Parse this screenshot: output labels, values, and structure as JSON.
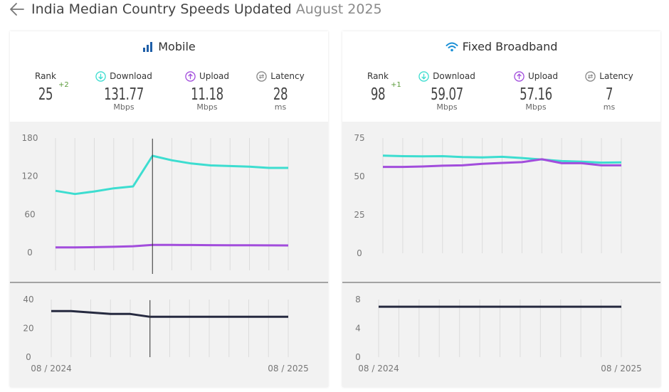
{
  "page": {
    "title_main": "India Median Country Speeds Updated",
    "title_date": "August 2025"
  },
  "colors": {
    "download": "#3dddd0",
    "upload": "#a24ddc",
    "latency": "#262a40",
    "mobile_icon": "#1f5fa8",
    "wifi_icon": "#1a8fd6",
    "rank_change": "#5a9b3a"
  },
  "mobile": {
    "title": "Mobile",
    "rank_label": "Rank",
    "rank_value": "25",
    "rank_change": "+2",
    "download_label": "Download",
    "download_value": "131.77",
    "download_unit": "Mbps",
    "upload_label": "Upload",
    "upload_value": "11.18",
    "upload_unit": "Mbps",
    "latency_label": "Latency",
    "latency_value": "28",
    "latency_unit": "ms"
  },
  "fixed": {
    "title": "Fixed Broadband",
    "rank_label": "Rank",
    "rank_value": "98",
    "rank_change": "+1",
    "download_label": "Download",
    "download_value": "59.07",
    "download_unit": "Mbps",
    "upload_label": "Upload",
    "upload_value": "57.16",
    "upload_unit": "Mbps",
    "latency_label": "Latency",
    "latency_value": "7",
    "latency_unit": "ms"
  },
  "chart_data": [
    {
      "id": "mobile-speed",
      "type": "line",
      "x_start": "08 / 2024",
      "x_end": "08 / 2025",
      "ylim": [
        0,
        180
      ],
      "yticks": [
        "180",
        "120",
        "60",
        "0"
      ],
      "series": [
        {
          "name": "Download",
          "values": [
            97,
            92,
            96,
            101,
            104,
            152,
            145,
            140,
            137,
            136,
            135,
            133,
            133
          ]
        },
        {
          "name": "Upload",
          "values": [
            8,
            8,
            8.5,
            9,
            10,
            12,
            12,
            11.8,
            11.6,
            11.5,
            11.4,
            11.3,
            11.2
          ]
        }
      ]
    },
    {
      "id": "mobile-latency",
      "type": "line",
      "x_start": "08 / 2024",
      "x_end": "08 / 2025",
      "ylim": [
        0,
        40
      ],
      "yticks": [
        "40",
        "20",
        "0"
      ],
      "series": [
        {
          "name": "Latency",
          "values": [
            32,
            32,
            31,
            30,
            30,
            28,
            28,
            28,
            28,
            28,
            28,
            28,
            28
          ]
        }
      ]
    },
    {
      "id": "fixed-speed",
      "type": "line",
      "x_start": "08 / 2024",
      "x_end": "08 / 2025",
      "ylim": [
        0,
        75
      ],
      "yticks": [
        "75",
        "50",
        "25",
        "0"
      ],
      "series": [
        {
          "name": "Download",
          "values": [
            63.5,
            63.2,
            63.1,
            63.2,
            62.6,
            62.4,
            62.8,
            62,
            61,
            60,
            59.6,
            59,
            59.1
          ]
        },
        {
          "name": "Upload",
          "values": [
            56.2,
            56.2,
            56.5,
            57,
            57.2,
            58.2,
            58.8,
            59.3,
            61.2,
            58.6,
            58.6,
            57.2,
            57.2
          ]
        }
      ]
    },
    {
      "id": "fixed-latency",
      "type": "line",
      "x_start": "08 / 2024",
      "x_end": "08 / 2025",
      "ylim": [
        0,
        8
      ],
      "yticks": [
        "8",
        "4",
        "0"
      ],
      "series": [
        {
          "name": "Latency",
          "values": [
            7,
            7,
            7,
            7,
            7,
            7,
            7,
            7,
            7,
            7,
            7,
            7,
            7
          ]
        }
      ]
    }
  ]
}
